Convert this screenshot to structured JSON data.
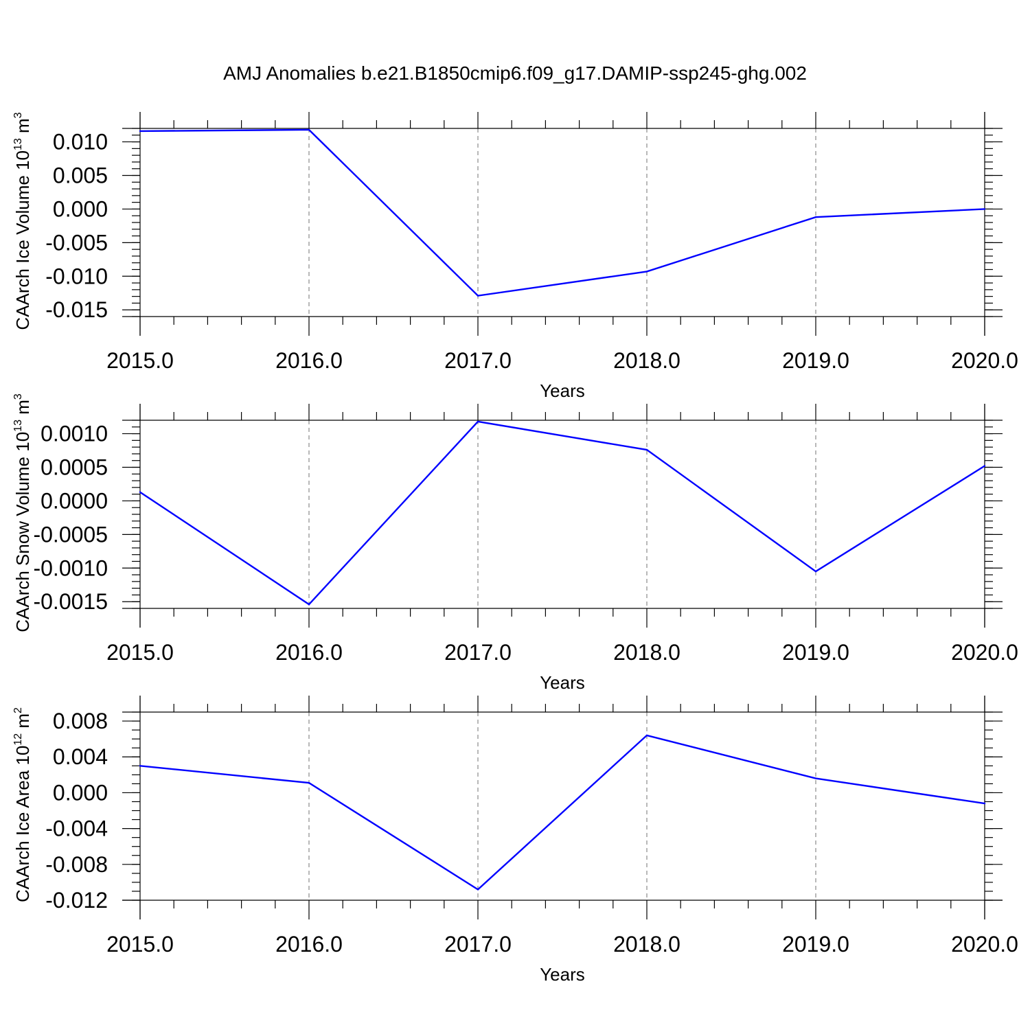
{
  "title": "AMJ Anomalies b.e21.B1850cmip6.f09_g17.DAMIP-ssp245-ghg.002",
  "colors": {
    "series": "#0000ff",
    "axes": "#000000",
    "grid": "#888888"
  },
  "chart_data": [
    {
      "type": "line",
      "x": [
        2015,
        2016,
        2017,
        2018,
        2019,
        2020
      ],
      "x_tick_labels": [
        "2015.0",
        "2016.0",
        "2017.0",
        "2018.0",
        "2019.0",
        "2020.0"
      ],
      "xlabel": "Years",
      "ylabel": {
        "text": "CAArch Ice Volume 10",
        "exp": "13",
        "unit": " m",
        "unit_exp": "3"
      },
      "ylim": [
        -0.016,
        0.012
      ],
      "yticks": [
        0.01,
        0.005,
        0.0,
        -0.005,
        -0.01,
        -0.015
      ],
      "ytick_labels": [
        "0.010",
        "0.005",
        "0.000",
        "-0.005",
        "-0.010",
        "-0.015"
      ],
      "y_minor_step": 0.001,
      "hline": 0.012,
      "grid": "vertical dashed",
      "series": [
        {
          "values": [
            0.0116,
            0.0118,
            -0.0129,
            -0.0093,
            -0.0012,
            0.0
          ]
        }
      ]
    },
    {
      "type": "line",
      "x": [
        2015,
        2016,
        2017,
        2018,
        2019,
        2020
      ],
      "x_tick_labels": [
        "2015.0",
        "2016.0",
        "2017.0",
        "2018.0",
        "2019.0",
        "2020.0"
      ],
      "xlabel": "Years",
      "ylabel": {
        "text": "CAArch Snow Volume 10",
        "exp": "13",
        "unit": " m",
        "unit_exp": "3"
      },
      "ylim": [
        -0.0016,
        0.0012
      ],
      "yticks": [
        0.001,
        0.0005,
        0.0,
        -0.0005,
        -0.001,
        -0.0015
      ],
      "ytick_labels": [
        "0.0010",
        "0.0005",
        "0.0000",
        "-0.0005",
        "-0.0010",
        "-0.0015"
      ],
      "y_minor_step": 0.0001,
      "hline": 0.0012,
      "grid": "vertical dashed",
      "series": [
        {
          "values": [
            0.00013,
            -0.00154,
            0.00118,
            0.00076,
            -0.00105,
            0.00052
          ]
        }
      ]
    },
    {
      "type": "line",
      "x": [
        2015,
        2016,
        2017,
        2018,
        2019,
        2020
      ],
      "x_tick_labels": [
        "2015.0",
        "2016.0",
        "2017.0",
        "2018.0",
        "2019.0",
        "2020.0"
      ],
      "xlabel": "Years",
      "ylabel": {
        "text": "CAArch Ice Area 10",
        "exp": "12",
        "unit": " m",
        "unit_exp": "2"
      },
      "ylim": [
        -0.012,
        0.009
      ],
      "yticks": [
        0.008,
        0.004,
        0.0,
        -0.004,
        -0.008,
        -0.012
      ],
      "ytick_labels": [
        "0.008",
        "0.004",
        "0.000",
        "-0.004",
        "-0.008",
        "-0.012"
      ],
      "y_minor_step": 0.001,
      "hline": 0.009,
      "grid": "vertical dashed",
      "series": [
        {
          "values": [
            0.003,
            0.0011,
            -0.0108,
            0.0064,
            0.0016,
            -0.0012
          ]
        }
      ]
    }
  ]
}
